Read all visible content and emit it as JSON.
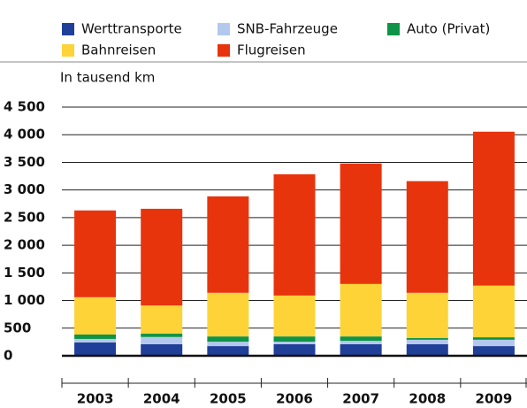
{
  "chart_data": {
    "type": "stacked_bar",
    "y_label": "In tausend km",
    "categories": [
      "2003",
      "2004",
      "2005",
      "2006",
      "2007",
      "2008",
      "2009"
    ],
    "series": [
      {
        "name": "Werttransporte",
        "color": "#1f3f99",
        "values": [
          240,
          210,
          175,
          210,
          210,
          210,
          175
        ]
      },
      {
        "name": "SNB-Fahrzeuge",
        "color": "#b3c8ec",
        "values": [
          65,
          130,
          80,
          45,
          60,
          80,
          115
        ]
      },
      {
        "name": "Auto (Privat)",
        "color": "#0f9447",
        "values": [
          80,
          60,
          95,
          95,
          80,
          30,
          45
        ]
      },
      {
        "name": "Bahnreisen",
        "color": "#fdd338",
        "values": [
          675,
          510,
          790,
          740,
          950,
          820,
          935
        ]
      },
      {
        "name": "Flugreisen",
        "color": "#e8340c",
        "values": [
          1570,
          1750,
          1745,
          2195,
          2180,
          2020,
          2785
        ]
      }
    ],
    "ylim": [
      0,
      4500
    ],
    "yticks": [
      0,
      500,
      {
        "value": 1000,
        "label": "1 000"
      },
      {
        "value": 1500,
        "label": "1 500"
      },
      {
        "value": 2000,
        "label": "2 000"
      },
      {
        "value": 2500,
        "label": "2 500"
      },
      {
        "value": 3000,
        "label": "3 000"
      },
      {
        "value": 3500,
        "label": "3 500"
      },
      {
        "value": 4000,
        "label": "4 000"
      },
      {
        "value": 4500,
        "label": "4 500"
      }
    ],
    "grid": true
  }
}
